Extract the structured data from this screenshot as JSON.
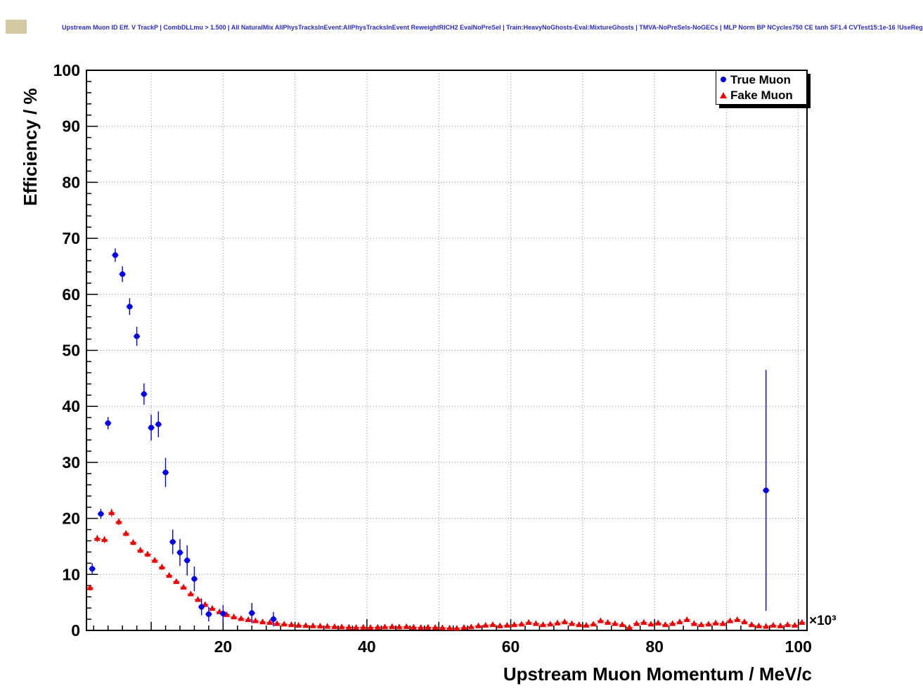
{
  "header": {
    "title": "Upstream Muon ID Eff. V TrackP | CombDLLmu > 1.500 | All NaturalMix AllPhysTracksInEvent:AllPhysTracksInEvent ReweightRICH2 EvalNoPreSel | Train:HeavyNoGhosts-Eval:MixtureGhosts | TMVA-NoPreSels-NoGECs | MLP Norm BP NCycles750 CE tanh SF1.4 CVTest15:1e-16 !UseReg",
    "title_color": "#2b2bc8"
  },
  "chart_data": {
    "type": "scatter",
    "title": "",
    "xlabel": "Upstream Muon Momentum / MeV/c",
    "ylabel": "Efficiency / %",
    "x_multiplier_label": "×10³",
    "xlim": [
      1,
      101.2
    ],
    "ylim": [
      0,
      100
    ],
    "x_major_ticks": [
      20,
      40,
      60,
      80,
      100
    ],
    "y_major_ticks": [
      0,
      10,
      20,
      30,
      40,
      50,
      60,
      70,
      80,
      90,
      100
    ],
    "x_grid_step": 10,
    "y_tick_step": 10,
    "x_minor_step": 2,
    "y_minor_step": 2,
    "x_half_width": 0.45,
    "grid": true,
    "grid_style": "dotted",
    "frame_color": "#000000",
    "legend": {
      "position": "top-right",
      "entries": [
        {
          "label": "True Muon",
          "color": "#0000ee",
          "marker": "circle"
        },
        {
          "label": "Fake Muon",
          "color": "#ee0000",
          "marker": "triangle"
        }
      ]
    },
    "series": [
      {
        "name": "Fake Muon",
        "marker": "triangle",
        "color": "#ee0000",
        "points": [
          [
            1.5,
            7.6,
            0.5
          ],
          [
            2.5,
            16.4,
            0.6
          ],
          [
            3.5,
            16.2,
            0.6
          ],
          [
            4.5,
            21.0,
            0.7
          ],
          [
            5.5,
            19.4,
            0.6
          ],
          [
            6.5,
            17.3,
            0.5
          ],
          [
            7.5,
            15.7,
            0.5
          ],
          [
            8.5,
            14.3,
            0.5
          ],
          [
            9.5,
            13.6,
            0.5
          ],
          [
            10.5,
            12.5,
            0.5
          ],
          [
            11.5,
            11.3,
            0.5
          ],
          [
            12.5,
            9.8,
            0.4
          ],
          [
            13.5,
            8.7,
            0.4
          ],
          [
            14.5,
            7.7,
            0.4
          ],
          [
            15.5,
            6.5,
            0.4
          ],
          [
            16.5,
            5.5,
            0.35
          ],
          [
            17.5,
            4.6,
            0.3
          ],
          [
            18.5,
            3.9,
            0.3
          ],
          [
            19.5,
            3.3,
            0.3
          ],
          [
            20.5,
            2.8,
            0.25
          ],
          [
            21.5,
            2.4,
            0.25
          ],
          [
            22.5,
            2.1,
            0.2
          ],
          [
            23.5,
            1.9,
            0.2
          ],
          [
            24.5,
            1.7,
            0.2
          ],
          [
            25.5,
            1.5,
            0.2
          ],
          [
            26.5,
            1.4,
            0.2
          ],
          [
            27.5,
            1.2,
            0.18
          ],
          [
            28.5,
            1.1,
            0.17
          ],
          [
            29.5,
            1.0,
            0.16
          ],
          [
            30.5,
            0.9,
            0.15
          ],
          [
            31.5,
            0.85,
            0.15
          ],
          [
            32.5,
            0.8,
            0.15
          ],
          [
            33.5,
            0.75,
            0.14
          ],
          [
            34.5,
            0.7,
            0.14
          ],
          [
            35.5,
            0.65,
            0.13
          ],
          [
            36.5,
            0.6,
            0.13
          ],
          [
            37.5,
            0.55,
            0.12
          ],
          [
            38.5,
            0.5,
            0.12
          ],
          [
            39.5,
            0.55,
            0.12
          ],
          [
            40.5,
            0.5,
            0.12
          ],
          [
            41.5,
            0.55,
            0.12
          ],
          [
            42.5,
            0.6,
            0.13
          ],
          [
            43.5,
            0.65,
            0.13
          ],
          [
            44.5,
            0.6,
            0.13
          ],
          [
            45.5,
            0.65,
            0.13
          ],
          [
            46.5,
            0.55,
            0.12
          ],
          [
            47.5,
            0.5,
            0.12
          ],
          [
            48.5,
            0.55,
            0.12
          ],
          [
            49.5,
            0.5,
            0.12
          ],
          [
            50.5,
            0.45,
            0.12
          ],
          [
            51.5,
            0.4,
            0.11
          ],
          [
            52.5,
            0.35,
            0.11
          ],
          [
            53.5,
            0.5,
            0.12
          ],
          [
            54.5,
            0.6,
            0.13
          ],
          [
            55.5,
            0.8,
            0.15
          ],
          [
            56.5,
            0.9,
            0.16
          ],
          [
            57.5,
            1.0,
            0.17
          ],
          [
            58.5,
            0.8,
            0.15
          ],
          [
            59.5,
            0.9,
            0.16
          ],
          [
            60.5,
            1.0,
            0.17
          ],
          [
            61.5,
            1.1,
            0.18
          ],
          [
            62.5,
            1.4,
            0.2
          ],
          [
            63.5,
            1.2,
            0.19
          ],
          [
            64.5,
            1.0,
            0.18
          ],
          [
            65.5,
            1.1,
            0.18
          ],
          [
            66.5,
            1.3,
            0.2
          ],
          [
            67.5,
            1.5,
            0.22
          ],
          [
            68.5,
            1.2,
            0.2
          ],
          [
            69.5,
            1.0,
            0.18
          ],
          [
            70.5,
            0.9,
            0.17
          ],
          [
            71.5,
            1.1,
            0.19
          ],
          [
            72.5,
            1.7,
            0.24
          ],
          [
            73.5,
            1.4,
            0.22
          ],
          [
            74.5,
            1.2,
            0.2
          ],
          [
            75.5,
            1.0,
            0.18
          ],
          [
            76.5,
            0.5,
            0.14
          ],
          [
            77.5,
            1.2,
            0.2
          ],
          [
            78.5,
            1.4,
            0.22
          ],
          [
            79.5,
            1.1,
            0.19
          ],
          [
            80.5,
            1.3,
            0.21
          ],
          [
            81.5,
            1.0,
            0.18
          ],
          [
            82.5,
            1.2,
            0.2
          ],
          [
            83.5,
            1.5,
            0.23
          ],
          [
            84.5,
            1.9,
            0.26
          ],
          [
            85.5,
            1.2,
            0.2
          ],
          [
            86.5,
            1.0,
            0.18
          ],
          [
            87.5,
            1.1,
            0.19
          ],
          [
            88.5,
            1.3,
            0.21
          ],
          [
            89.5,
            1.2,
            0.2
          ],
          [
            90.5,
            1.7,
            0.25
          ],
          [
            91.5,
            1.9,
            0.27
          ],
          [
            92.5,
            1.5,
            0.23
          ],
          [
            93.5,
            1.0,
            0.18
          ],
          [
            94.5,
            0.8,
            0.16
          ],
          [
            95.5,
            0.7,
            0.15
          ],
          [
            96.5,
            0.9,
            0.17
          ],
          [
            97.5,
            0.8,
            0.16
          ],
          [
            98.5,
            1.0,
            0.18
          ],
          [
            99.5,
            0.9,
            0.17
          ],
          [
            100.5,
            1.4,
            0.22
          ]
        ]
      },
      {
        "name": "True Muon",
        "marker": "circle",
        "color": "#0000ee",
        "points": [
          [
            1.8,
            11.0,
            1.0
          ],
          [
            3.0,
            20.8,
            0.9
          ],
          [
            4.0,
            37.0,
            1.1
          ],
          [
            5.0,
            67.0,
            1.2
          ],
          [
            6.0,
            63.6,
            1.4
          ],
          [
            7.0,
            57.8,
            1.5
          ],
          [
            8.0,
            52.5,
            1.7
          ],
          [
            9.0,
            42.2,
            1.9
          ],
          [
            10.0,
            36.2,
            2.3
          ],
          [
            11.0,
            36.8,
            2.3
          ],
          [
            12.0,
            28.2,
            2.6
          ],
          [
            13.0,
            15.8,
            2.2
          ],
          [
            14.0,
            13.9,
            2.4
          ],
          [
            15.0,
            12.5,
            2.7
          ],
          [
            16.0,
            9.2,
            2.2
          ],
          [
            17.0,
            4.2,
            1.5
          ],
          [
            18.0,
            2.9,
            1.3
          ],
          [
            20.0,
            3.0,
            1.5
          ],
          [
            24.0,
            3.1,
            1.8
          ],
          [
            27.0,
            2.0,
            1.3
          ],
          [
            95.5,
            25.0,
            21.5
          ]
        ]
      }
    ]
  }
}
